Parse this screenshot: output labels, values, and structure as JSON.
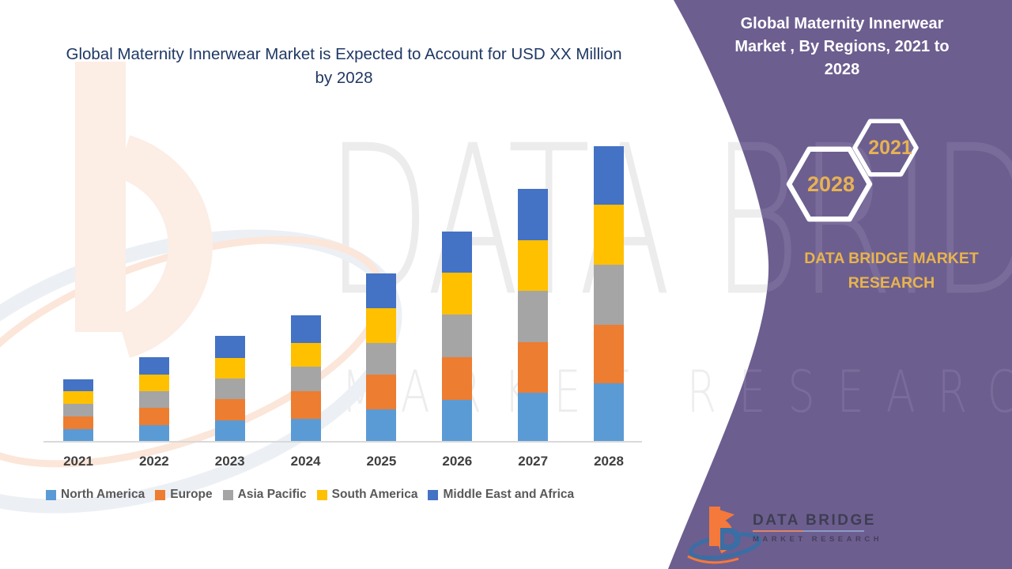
{
  "chart": {
    "title": "Global Maternity Innerwear Market is Expected to Account for USD XX Million by 2028"
  },
  "side_panel": {
    "title": "Global Maternity Innerwear Market , By Regions, 2021 to 2028",
    "year_badge_front": "2021",
    "year_badge_back": "2028",
    "brand_caption": "DATA BRIDGE MARKET RESEARCH"
  },
  "watermark": {
    "line1": "DATA BRIDGE",
    "line2": "MARKET RESEARCH"
  },
  "footer_logo": {
    "title": "DATA BRIDGE",
    "subtitle": "MARKET RESEARCH"
  },
  "colors": {
    "panel_purple": "#6D5E90",
    "accent_gold": "#E7B252",
    "title_navy": "#1F3864",
    "logo_orange": "#F4793B",
    "logo_blue": "#3A6EA5",
    "axis_line": "#D9D9D9"
  },
  "chart_data": {
    "type": "bar",
    "stacked": true,
    "title": "Global Maternity Innerwear Market is Expected to Account for USD XX Million by 2028",
    "categories": [
      "2021",
      "2022",
      "2023",
      "2024",
      "2025",
      "2026",
      "2027",
      "2028"
    ],
    "series": [
      {
        "name": "North America",
        "color": "#5B9BD5",
        "values": [
          16,
          21,
          27,
          29,
          41,
          53,
          62,
          74
        ]
      },
      {
        "name": "Europe",
        "color": "#ED7D31",
        "values": [
          16,
          22,
          27,
          35,
          44,
          54,
          64,
          74
        ]
      },
      {
        "name": "Asia Pacific",
        "color": "#A5A5A5",
        "values": [
          16,
          21,
          26,
          31,
          40,
          54,
          65,
          76
        ]
      },
      {
        "name": "South America",
        "color": "#FFC000",
        "values": [
          16,
          21,
          26,
          30,
          44,
          53,
          64,
          76
        ]
      },
      {
        "name": "Middle East and Africa",
        "color": "#4472C4",
        "values": [
          15,
          22,
          28,
          35,
          44,
          52,
          65,
          74
        ]
      }
    ],
    "value_axis": {
      "tick_labels_shown": false,
      "units": "relative units (source values shown as USD XX Million)"
    },
    "legend_position": "bottom",
    "grid": false
  }
}
